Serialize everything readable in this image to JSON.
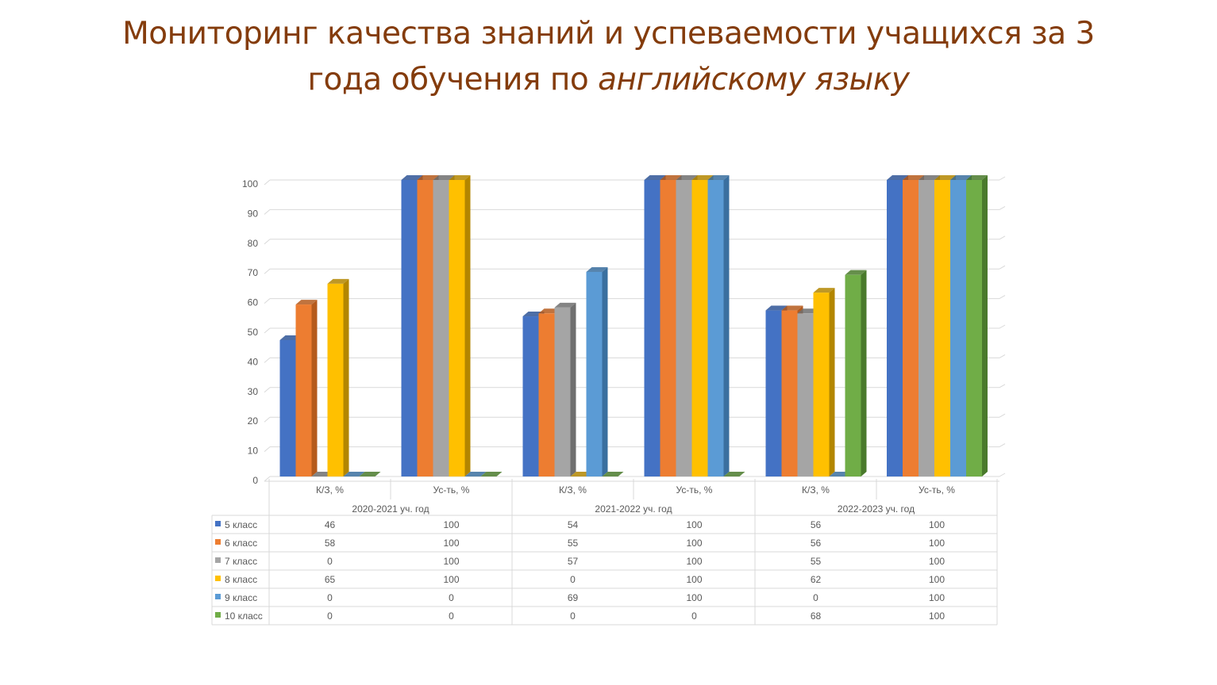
{
  "slide": {
    "title_line1": "Мониторинг качества знаний и успеваемости учащихся за 3",
    "title_line2_plain": "года обучения по ",
    "title_line2_italic": "английскому языку"
  },
  "chart_data": {
    "type": "bar",
    "style": "3d-clustered-column-with-data-table",
    "groups": [
      {
        "year": "2020-2021  уч. год",
        "metrics": [
          "К/З, %",
          "Ус-ть, %"
        ]
      },
      {
        "year": "2021-2022  уч. год",
        "metrics": [
          "К/З, %",
          "Ус-ть, %"
        ]
      },
      {
        "year": "2022-2023  уч. год",
        "metrics": [
          "К/З, %",
          "Ус-ть, %"
        ]
      }
    ],
    "categories": [
      "К/З, %",
      "Ус-ть, %",
      "К/З, %",
      "Ус-ть, %",
      "К/З, %",
      "Ус-ть, %"
    ],
    "series": [
      {
        "name": "5 класс",
        "color": "#4472c4",
        "dark": "#2f5597",
        "values": [
          46,
          100,
          54,
          100,
          56,
          100
        ]
      },
      {
        "name": "6 класс",
        "color": "#ed7d31",
        "dark": "#b55a1c",
        "values": [
          58,
          100,
          55,
          100,
          56,
          100
        ]
      },
      {
        "name": "7 класс",
        "color": "#a5a5a5",
        "dark": "#6f6f6f",
        "values": [
          0,
          100,
          57,
          100,
          55,
          100
        ]
      },
      {
        "name": "8 класс",
        "color": "#ffc000",
        "dark": "#b38600",
        "values": [
          65,
          100,
          0,
          100,
          62,
          100
        ]
      },
      {
        "name": "9 класс",
        "color": "#5b9bd5",
        "dark": "#3a6f9f",
        "values": [
          0,
          0,
          69,
          100,
          0,
          100
        ]
      },
      {
        "name": "10 класс",
        "color": "#70ad47",
        "dark": "#4a7a2c",
        "values": [
          0,
          0,
          0,
          0,
          68,
          100
        ]
      }
    ],
    "y_ticks": [
      "0",
      "10",
      "20",
      "30",
      "40",
      "50",
      "60",
      "70",
      "80",
      "90",
      "100"
    ],
    "ylim": [
      0,
      100
    ],
    "grid": true,
    "legend": "data-table-left"
  }
}
